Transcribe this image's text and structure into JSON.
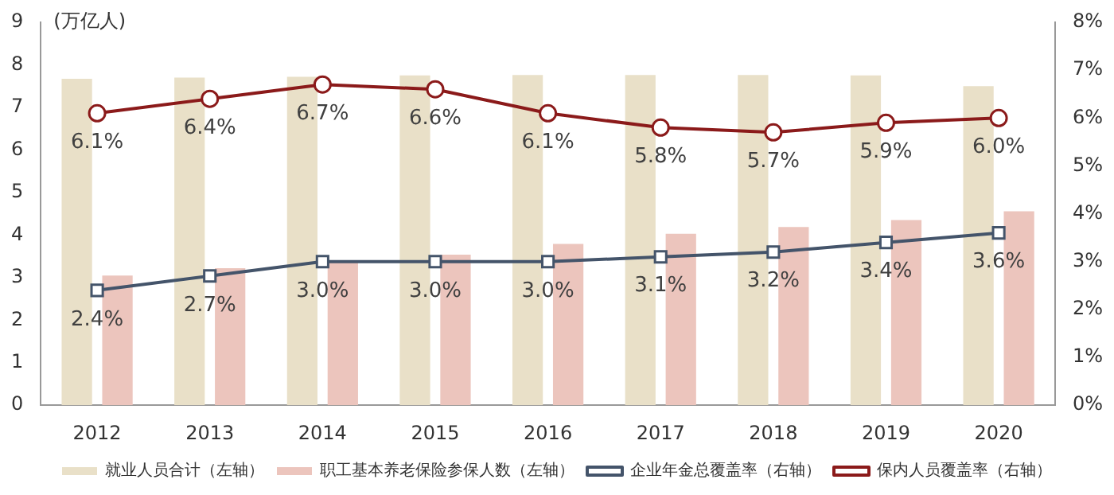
{
  "chart_data": {
    "type": "bar",
    "ylabel": "(万亿人)",
    "categories": [
      "2012",
      "2013",
      "2014",
      "2015",
      "2016",
      "2017",
      "2018",
      "2019",
      "2020"
    ],
    "series": [
      {
        "name": "就业人员合计（左轴）",
        "color": "#e9e0c8",
        "values": [
          7.67,
          7.7,
          7.72,
          7.75,
          7.76,
          7.76,
          7.76,
          7.75,
          7.5
        ]
      },
      {
        "name": "职工基本养老保险参保人数（左轴）",
        "color": "#ecc5bd",
        "values": [
          3.05,
          3.22,
          3.41,
          3.54,
          3.79,
          4.03,
          4.19,
          4.35,
          4.56
        ]
      },
      {
        "name": "企业年金总覆盖率（右轴）",
        "type": "line",
        "axis": "y2",
        "color": "#44546a",
        "marker": "square",
        "values": [
          2.4,
          2.7,
          3.0,
          3.0,
          3.0,
          3.1,
          3.2,
          3.4,
          3.6
        ],
        "value_labels": [
          "2.4%",
          "2.7%",
          "3.0%",
          "3.0%",
          "3.0%",
          "3.1%",
          "3.2%",
          "3.4%",
          "3.6%"
        ]
      },
      {
        "name": "保内人员覆盖率（右轴）",
        "type": "line",
        "axis": "y2",
        "color": "#8b1a1a",
        "marker": "circle",
        "values": [
          6.1,
          6.4,
          6.7,
          6.6,
          6.1,
          5.8,
          5.7,
          5.9,
          6.0
        ],
        "value_labels": [
          "6.1%",
          "6.4%",
          "6.7%",
          "6.6%",
          "6.1%",
          "5.8%",
          "5.7%",
          "5.9%",
          "6.0%"
        ]
      }
    ],
    "ylim": [
      0,
      9
    ],
    "yticks": [
      0,
      1,
      2,
      3,
      4,
      5,
      6,
      7,
      8,
      9
    ],
    "y2lim": [
      0,
      8
    ],
    "y2ticks": [
      {
        "value": 0,
        "label": "0%"
      },
      {
        "value": 1,
        "label": "1%"
      },
      {
        "value": 2,
        "label": "2%"
      },
      {
        "value": 3,
        "label": "3%"
      },
      {
        "value": 4,
        "label": "4%"
      },
      {
        "value": 5,
        "label": "5%"
      },
      {
        "value": 6,
        "label": "6%"
      },
      {
        "value": 7,
        "label": "7%"
      },
      {
        "value": 8,
        "label": "8%"
      }
    ],
    "grid": false,
    "legend": "bottom"
  }
}
